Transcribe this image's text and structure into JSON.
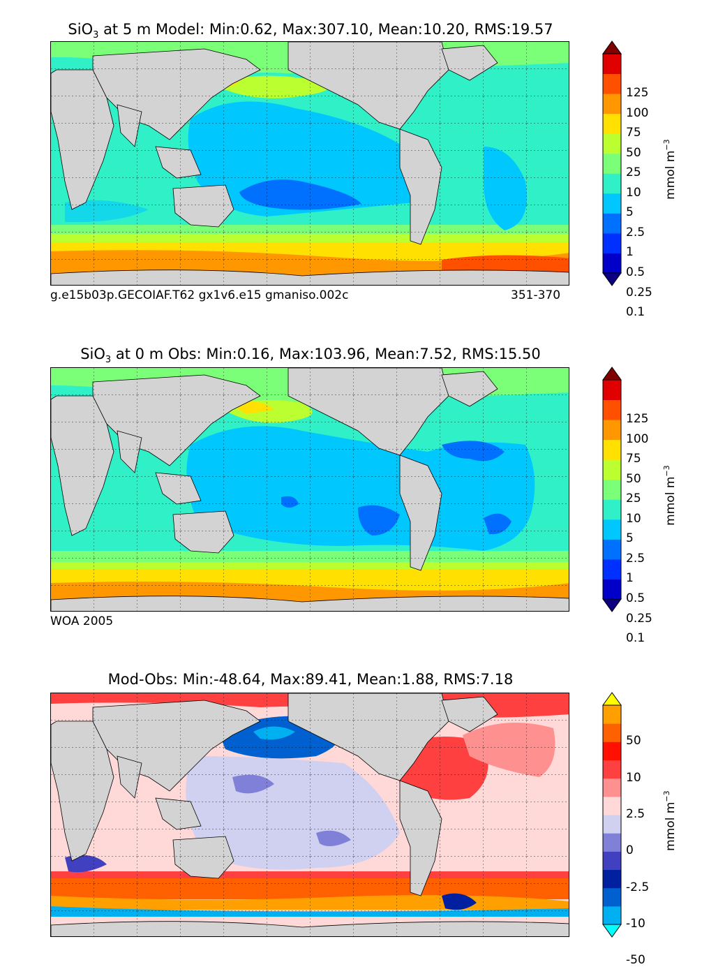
{
  "panels": [
    {
      "title_main": "SiO",
      "title_sub": "3",
      "title_rest": " at 5 m Model: Min:0.62, Max:307.10, Mean:10.20, RMS:19.57",
      "caption_left": "g.e15b03p.GECOIAF.T62 gx1v6.e15 gmaniso.002c",
      "caption_right": "351-370",
      "colorbar": {
        "ticks": [
          "125",
          "100",
          "75",
          "50",
          "25",
          "10",
          "5",
          "2.5",
          "1",
          "0.5",
          "0.25",
          "0.1"
        ],
        "colors": [
          "#0c0080",
          "#0000c8",
          "#0030ff",
          "#0070ff",
          "#00c8ff",
          "#30f0c8",
          "#7cff78",
          "#bcff30",
          "#ffe000",
          "#ff9800",
          "#ff5000",
          "#e00000",
          "#800000"
        ],
        "unit": "mmol m",
        "unit_sup": "−3"
      }
    },
    {
      "title_main": "SiO",
      "title_sub": "3",
      "title_rest": " at 0 m Obs: Min:0.16, Max:103.96, Mean:7.52, RMS:15.50",
      "caption_left": "WOA 2005",
      "caption_right": "",
      "colorbar": {
        "ticks": [
          "125",
          "100",
          "75",
          "50",
          "25",
          "10",
          "5",
          "2.5",
          "1",
          "0.5",
          "0.25",
          "0.1"
        ],
        "colors": [
          "#0c0080",
          "#0000c8",
          "#0030ff",
          "#0070ff",
          "#00c8ff",
          "#30f0c8",
          "#7cff78",
          "#bcff30",
          "#ffe000",
          "#ff9800",
          "#ff5000",
          "#e00000",
          "#800000"
        ],
        "unit": "mmol m",
        "unit_sup": "−3"
      }
    },
    {
      "title_main": "Mod-Obs: Min:-48.64, Max:89.41, Mean:1.88, RMS:7.18",
      "title_sub": "",
      "title_rest": "",
      "caption_left": "",
      "caption_right": "",
      "colorbar": {
        "ticks": [
          "50",
          "10",
          "2.5",
          "0",
          "-2.5",
          "-10",
          "-50"
        ],
        "colors": [
          "#00ffff",
          "#00b0f0",
          "#0060d0",
          "#0020a0",
          "#4040c0",
          "#8080d8",
          "#d0d0f0",
          "#ffd8d8",
          "#ff9090",
          "#ff4040",
          "#ff1000",
          "#ff6000",
          "#ffa000",
          "#ffff00"
        ],
        "unit": "mmol m",
        "unit_sup": "−3"
      }
    }
  ]
}
